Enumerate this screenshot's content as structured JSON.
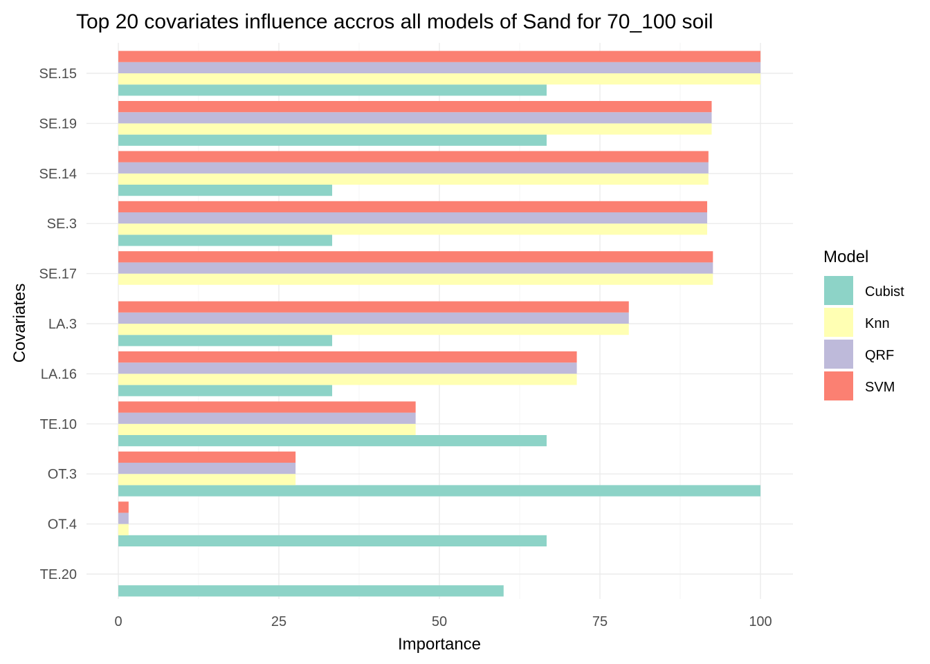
{
  "chart_data": {
    "type": "bar",
    "orientation": "horizontal",
    "title": "Top 20 covariates influence accros all models of Sand for 70_100 soil",
    "xlabel": "Importance",
    "ylabel": "Covariates",
    "xlim": [
      0,
      100
    ],
    "x_ticks": [
      "0",
      "25",
      "50",
      "75",
      "100"
    ],
    "categories": [
      "SE.15",
      "SE.19",
      "SE.14",
      "SE.3",
      "SE.17",
      "LA.3",
      "LA.16",
      "TE.10",
      "OT.3",
      "OT.4",
      "TE.20"
    ],
    "legend_title": "Model",
    "legend_position": "right",
    "grid": true,
    "series": [
      {
        "name": "Cubist",
        "color": "#8DD3C7",
        "values": [
          66.7,
          66.7,
          33.3,
          33.3,
          null,
          33.3,
          33.3,
          66.7,
          100,
          66.7,
          60
        ]
      },
      {
        "name": "Knn",
        "color": "#FFFFB3",
        "values": [
          100,
          92.4,
          91.9,
          91.7,
          92.6,
          79.5,
          71.4,
          46.3,
          27.6,
          1.6,
          null
        ]
      },
      {
        "name": "QRF",
        "color": "#BEBADA",
        "values": [
          100,
          92.4,
          91.9,
          91.7,
          92.6,
          79.5,
          71.4,
          46.3,
          27.6,
          1.6,
          null
        ]
      },
      {
        "name": "SVM",
        "color": "#FB8072",
        "values": [
          100,
          92.4,
          91.9,
          91.7,
          92.6,
          79.5,
          71.4,
          46.3,
          27.6,
          1.6,
          null
        ]
      }
    ]
  }
}
